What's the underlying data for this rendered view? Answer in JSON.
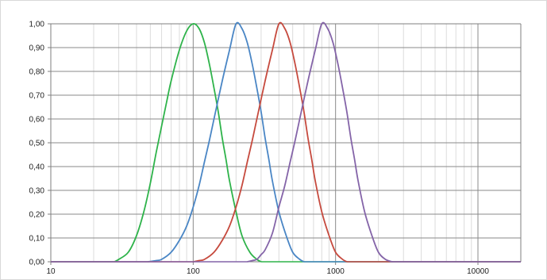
{
  "chart_data": {
    "type": "line",
    "title": "",
    "xlabel": "",
    "ylabel": "",
    "x_scale": "log",
    "xlim": [
      10,
      20000
    ],
    "ylim": [
      0,
      1
    ],
    "grid": true,
    "legend": "none",
    "x_tick_labels": [
      {
        "value": 10,
        "label": "10"
      },
      {
        "value": 100,
        "label": "100"
      },
      {
        "value": 1000,
        "label": "1000"
      },
      {
        "value": 10000,
        "label": "10000"
      }
    ],
    "y_tick_labels": [
      {
        "value": 0.0,
        "label": "0,00"
      },
      {
        "value": 0.1,
        "label": "0,10"
      },
      {
        "value": 0.2,
        "label": "0,20"
      },
      {
        "value": 0.3,
        "label": "0,30"
      },
      {
        "value": 0.4,
        "label": "0,40"
      },
      {
        "value": 0.5,
        "label": "0,50"
      },
      {
        "value": 0.6,
        "label": "0,60"
      },
      {
        "value": 0.7,
        "label": "0,70"
      },
      {
        "value": 0.8,
        "label": "0,80"
      },
      {
        "value": 0.9,
        "label": "0,90"
      },
      {
        "value": 1.0,
        "label": "1,00"
      }
    ],
    "series": [
      {
        "color": "#2eb34a",
        "x": [
          28,
          30,
          35,
          40,
          45,
          50,
          55,
          60,
          65,
          70,
          80,
          90,
          100,
          110,
          120,
          130,
          140,
          150,
          160,
          170,
          180,
          200,
          220,
          250,
          280,
          300
        ],
        "y": [
          0.0,
          0.01,
          0.04,
          0.11,
          0.21,
          0.33,
          0.46,
          0.57,
          0.67,
          0.76,
          0.89,
          0.97,
          1.0,
          0.98,
          0.92,
          0.83,
          0.73,
          0.63,
          0.52,
          0.43,
          0.34,
          0.21,
          0.11,
          0.04,
          0.01,
          0.0
        ]
      },
      {
        "color": "#4a86c5",
        "x": [
          48,
          55,
          60,
          70,
          80,
          90,
          100,
          110,
          120,
          130,
          140,
          160,
          180,
          200,
          220,
          240,
          260,
          280,
          300,
          320,
          340,
          360,
          400,
          450,
          500,
          560,
          600
        ],
        "y": [
          0.0,
          0.005,
          0.01,
          0.04,
          0.09,
          0.15,
          0.23,
          0.32,
          0.42,
          0.51,
          0.6,
          0.76,
          0.89,
          1.0,
          0.98,
          0.92,
          0.83,
          0.73,
          0.63,
          0.52,
          0.43,
          0.34,
          0.21,
          0.11,
          0.04,
          0.01,
          0.0
        ]
      },
      {
        "color": "#c64a3e",
        "x": [
          100,
          110,
          120,
          140,
          160,
          180,
          200,
          220,
          240,
          260,
          280,
          320,
          360,
          400,
          440,
          480,
          520,
          560,
          600,
          640,
          680,
          720,
          800,
          900,
          1000,
          1120,
          1200
        ],
        "y": [
          0.0,
          0.005,
          0.01,
          0.04,
          0.09,
          0.15,
          0.23,
          0.32,
          0.42,
          0.51,
          0.6,
          0.76,
          0.89,
          1.0,
          0.98,
          0.92,
          0.83,
          0.73,
          0.63,
          0.52,
          0.43,
          0.34,
          0.21,
          0.11,
          0.04,
          0.01,
          0.0
        ]
      },
      {
        "color": "#8464a8",
        "x": [
          240,
          260,
          280,
          300,
          320,
          360,
          400,
          440,
          480,
          520,
          560,
          640,
          720,
          800,
          880,
          960,
          1040,
          1120,
          1200,
          1280,
          1360,
          1440,
          1600,
          1800,
          2000,
          2240,
          2500
        ],
        "y": [
          0.0,
          0.005,
          0.01,
          0.03,
          0.05,
          0.12,
          0.23,
          0.32,
          0.42,
          0.51,
          0.6,
          0.76,
          0.89,
          1.0,
          0.98,
          0.92,
          0.83,
          0.73,
          0.63,
          0.52,
          0.43,
          0.34,
          0.21,
          0.11,
          0.04,
          0.01,
          0.0
        ]
      }
    ]
  }
}
